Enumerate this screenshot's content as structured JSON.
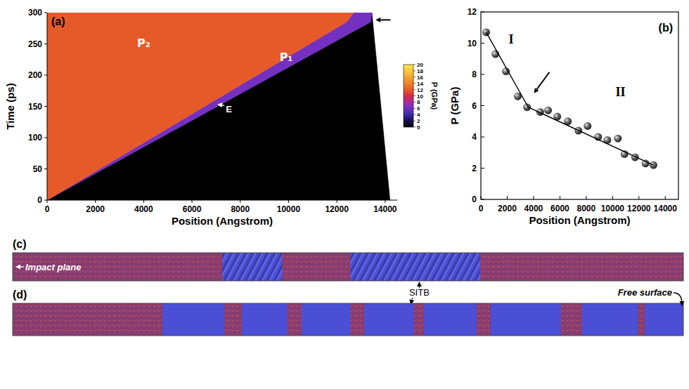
{
  "chart_data": [
    {
      "type": "heatmap",
      "panel": "(a)",
      "xlabel": "Position (Angstrom)",
      "ylabel": "Time (ps)",
      "xlim": [
        0,
        14500
      ],
      "xticks": [
        0,
        2000,
        4000,
        6000,
        8000,
        10000,
        12000,
        14000
      ],
      "ylim": [
        0,
        300
      ],
      "yticks": [
        0,
        50,
        100,
        150,
        200,
        250,
        300
      ],
      "regions": [
        {
          "pressure": 0,
          "position": [
            0,
            14200,
            13450,
            13400
          ],
          "time": [
            0,
            0,
            300,
            285
          ]
        },
        {
          "pressure": 6,
          "position": [
            0,
            13400,
            13450,
            12700,
            12400
          ],
          "time": [
            0,
            285,
            300,
            300,
            285
          ]
        },
        {
          "pressure": 12,
          "position": [
            0,
            12400,
            12700,
            0
          ],
          "time": [
            0,
            285,
            300,
            300
          ]
        }
      ],
      "colorbar": {
        "label": "P (GPa)",
        "range": [
          0,
          20
        ],
        "ticks": [
          0,
          2,
          4,
          6,
          8,
          10,
          12,
          14,
          16,
          18,
          20
        ]
      },
      "annotations": [
        {
          "text": "P₂",
          "x": 4000,
          "y": 245
        },
        {
          "text": "P₁",
          "x": 9900,
          "y": 222
        },
        {
          "text": "E",
          "x": 7400,
          "y": 140
        }
      ]
    },
    {
      "type": "scatter",
      "panel": "(b)",
      "xlabel": "Position (Angstrom)",
      "ylabel": "P (GPa)",
      "xlim": [
        0,
        15000
      ],
      "xticks": [
        0,
        2000,
        4000,
        6000,
        8000,
        10000,
        12000,
        14000
      ],
      "ylim": [
        0,
        12
      ],
      "yticks": [
        0,
        2,
        4,
        6,
        8,
        10,
        12
      ],
      "series": [
        {
          "type": "scatter",
          "marker": "sphere",
          "color": "#222222",
          "x": [
            400,
            1100,
            1900,
            2800,
            3500,
            4500,
            5100,
            5800,
            6600,
            7400,
            8100,
            8900,
            9600,
            10400,
            10900,
            11700,
            12500,
            13100
          ],
          "values": [
            10.7,
            9.3,
            8.2,
            6.6,
            5.9,
            5.6,
            5.7,
            5.3,
            5.0,
            4.4,
            4.7,
            4.0,
            3.8,
            3.9,
            2.9,
            2.7,
            2.3,
            2.2
          ]
        },
        {
          "type": "line",
          "color": "#000000",
          "line_style": "solid",
          "x": [
            400,
            3600,
            13100
          ],
          "values": [
            10.7,
            5.9,
            2.2
          ]
        }
      ],
      "annotations": [
        {
          "text": "I",
          "x": 2300,
          "y": 10
        },
        {
          "text": "II",
          "x": 10600,
          "y": 6.6
        }
      ]
    },
    {
      "type": "snapshot",
      "panel": "(c)",
      "xlim": [
        0,
        14400
      ],
      "tick_labels": false,
      "color": "#4a4fd6",
      "line_style": "striped",
      "bands": [
        {
          "start": 4500,
          "end": 5790
        },
        {
          "start": 7250,
          "end": 10040
        }
      ],
      "annotations": [
        {
          "text": "Impact plane",
          "x": 0
        },
        {
          "text": "SITB",
          "x": 8730
        }
      ]
    },
    {
      "type": "snapshot",
      "panel": "(d)",
      "xlim": [
        0,
        14400
      ],
      "tick_labels": false,
      "color": "#4a4fd6",
      "line_style": "solid",
      "bands": [
        {
          "start": 3220,
          "end": 4545
        },
        {
          "start": 4920,
          "end": 5900
        },
        {
          "start": 6200,
          "end": 7250
        },
        {
          "start": 7550,
          "end": 8610
        },
        {
          "start": 8830,
          "end": 9960
        },
        {
          "start": 10260,
          "end": 11770
        },
        {
          "start": 12220,
          "end": 13420
        },
        {
          "start": 13570,
          "end": 14400
        }
      ],
      "annotations": [
        {
          "text": "Free surface",
          "x": 14400
        }
      ]
    }
  ]
}
